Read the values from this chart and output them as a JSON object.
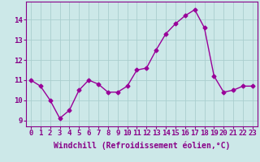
{
  "x": [
    0,
    1,
    2,
    3,
    4,
    5,
    6,
    7,
    8,
    9,
    10,
    11,
    12,
    13,
    14,
    15,
    16,
    17,
    18,
    19,
    20,
    21,
    22,
    23
  ],
  "y": [
    11.0,
    10.7,
    10.0,
    9.1,
    9.5,
    10.5,
    11.0,
    10.8,
    10.4,
    10.4,
    10.7,
    11.5,
    11.6,
    12.5,
    13.3,
    13.8,
    14.2,
    14.5,
    13.6,
    11.2,
    10.4,
    10.5,
    10.7,
    10.7
  ],
  "line_color": "#990099",
  "marker": "D",
  "marker_size": 2.5,
  "bg_color": "#cce8e8",
  "grid_color": "#aacece",
  "xlabel": "Windchill (Refroidissement éolien,°C)",
  "xlabel_fontsize": 7,
  "ylabel_ticks": [
    9,
    10,
    11,
    12,
    13,
    14
  ],
  "xtick_labels": [
    "0",
    "1",
    "2",
    "3",
    "4",
    "5",
    "6",
    "7",
    "8",
    "9",
    "10",
    "11",
    "12",
    "13",
    "14",
    "15",
    "16",
    "17",
    "18",
    "19",
    "20",
    "21",
    "22",
    "23"
  ],
  "xlim": [
    -0.5,
    23.5
  ],
  "ylim": [
    8.7,
    14.9
  ],
  "tick_fontsize": 6.5,
  "line_width": 1.0,
  "text_color": "#880088"
}
